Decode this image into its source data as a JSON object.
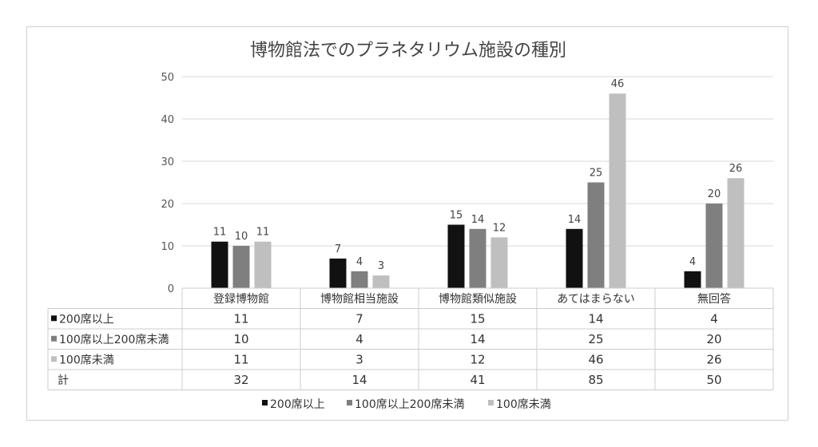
{
  "chart_data": {
    "type": "bar",
    "title": "博物館法でのプラネタリウム施設の種別",
    "categories": [
      "登録博物館",
      "博物館相当施設",
      "博物館類似施設",
      "あてはまらない",
      "無回答"
    ],
    "series": [
      {
        "name": "200席以上",
        "values": [
          11,
          7,
          15,
          14,
          4
        ],
        "color": "#111111"
      },
      {
        "name": "100席以上200席未満",
        "values": [
          10,
          4,
          14,
          25,
          20
        ],
        "color": "#7f7f7f"
      },
      {
        "name": "100席未満",
        "values": [
          11,
          3,
          12,
          46,
          26
        ],
        "color": "#bfbfbf"
      }
    ],
    "yticks": [
      0,
      10,
      20,
      30,
      40,
      50
    ],
    "ylim": [
      0,
      50
    ],
    "grid": true,
    "legend_position": "bottom",
    "data_table": {
      "rows": [
        {
          "label": "200席以上",
          "marker": true,
          "color": "#111111",
          "values": [
            11,
            7,
            15,
            14,
            4
          ]
        },
        {
          "label": "100席以上200席未満",
          "marker": true,
          "color": "#7f7f7f",
          "values": [
            10,
            4,
            14,
            25,
            20
          ]
        },
        {
          "label": "100席未満",
          "marker": true,
          "color": "#bfbfbf",
          "values": [
            11,
            3,
            12,
            46,
            26
          ]
        },
        {
          "label": "計",
          "marker": false,
          "color": "",
          "values": [
            32,
            14,
            41,
            85,
            50
          ]
        }
      ]
    }
  }
}
